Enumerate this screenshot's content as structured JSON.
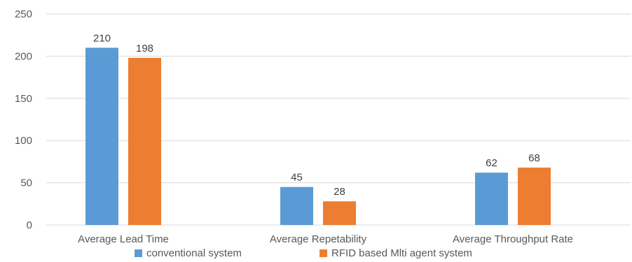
{
  "chart_data": {
    "type": "bar",
    "title": "",
    "xlabel": "",
    "ylabel": "",
    "categories": [
      "Average Lead  Time",
      "Average Repetability",
      "Average Throughput Rate"
    ],
    "series": [
      {
        "name": "conventional system",
        "values": [
          210,
          45,
          62
        ],
        "color": "#5b9bd5"
      },
      {
        "name": "RFID based Mlti agent system",
        "values": [
          198,
          28,
          68
        ],
        "color": "#ed7d31"
      }
    ],
    "ylim": [
      0,
      250
    ],
    "yticks": [
      0,
      50,
      100,
      150,
      200,
      250
    ],
    "grid": true,
    "data_labels": true,
    "legend_position": "bottom"
  }
}
